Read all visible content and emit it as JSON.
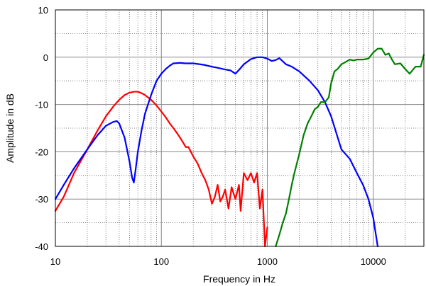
{
  "chart_data": {
    "type": "line",
    "title": "",
    "xlabel": "Frequency in Hz",
    "ylabel": "Amplitude in dB",
    "xscale": "log",
    "xlim": [
      10,
      30000
    ],
    "ylim": [
      -40,
      10
    ],
    "grid": true,
    "legend": "none",
    "x_ticks": [
      10,
      100,
      1000,
      10000
    ],
    "x_tick_labels": [
      "10",
      "100",
      "1000",
      "10000"
    ],
    "y_ticks": [
      10,
      0,
      -10,
      -20,
      -30,
      -40
    ],
    "y_tick_labels": [
      "10",
      "0",
      "-10",
      "-20",
      "-30",
      "-40"
    ],
    "series": [
      {
        "color": "#ff0000",
        "x": [
          10,
          12,
          15,
          20,
          25,
          30,
          35,
          40,
          45,
          50,
          55,
          60,
          65,
          70,
          80,
          90,
          100,
          110,
          120,
          130,
          140,
          150,
          160,
          170,
          180,
          190,
          200,
          220,
          240,
          260,
          280,
          300,
          320,
          340,
          360,
          380,
          400,
          430,
          460,
          500,
          540,
          560,
          600,
          650,
          700,
          750,
          800,
          850,
          900,
          950,
          1000
        ],
        "y": [
          -32.5,
          -29.5,
          -24.5,
          -19.5,
          -15.5,
          -12.5,
          -10.5,
          -9.0,
          -8.0,
          -7.5,
          -7.3,
          -7.3,
          -7.6,
          -8.0,
          -9.0,
          -10.2,
          -11.5,
          -12.7,
          -14.0,
          -15.0,
          -16.0,
          -17.0,
          -18.0,
          -19.0,
          -19.0,
          -20.0,
          -21.0,
          -22.5,
          -24.5,
          -26.0,
          -28.0,
          -31.0,
          -29.5,
          -27.0,
          -30.5,
          -29.5,
          -28.0,
          -32.0,
          -27.5,
          -30.0,
          -27.0,
          -32.5,
          -24.5,
          -26.0,
          -24.5,
          -26.5,
          -24.5,
          -32.0,
          -28.0,
          -40.0,
          -36.0
        ]
      },
      {
        "color": "#0000ff",
        "x": [
          10,
          12,
          15,
          20,
          25,
          30,
          35,
          38,
          40,
          45,
          50,
          53,
          55,
          57,
          60,
          65,
          70,
          80,
          90,
          100,
          110,
          120,
          130,
          150,
          170,
          200,
          250,
          300,
          350,
          400,
          450,
          500,
          550,
          600,
          700,
          800,
          900,
          1000,
          1100,
          1200,
          1300,
          1500,
          1700,
          2000,
          2500,
          3000,
          3500,
          4000,
          5000,
          6000,
          7000,
          8000,
          9000,
          10000,
          11000
        ],
        "y": [
          -30.0,
          -27.0,
          -23.5,
          -19.5,
          -16.5,
          -14.5,
          -13.7,
          -13.5,
          -14.0,
          -17.0,
          -22.0,
          -25.5,
          -26.5,
          -24.0,
          -20.0,
          -15.5,
          -12.0,
          -8.0,
          -5.0,
          -3.5,
          -2.5,
          -1.8,
          -1.3,
          -1.2,
          -1.3,
          -1.3,
          -1.6,
          -2.0,
          -2.3,
          -2.6,
          -2.8,
          -3.5,
          -2.5,
          -1.5,
          -0.4,
          0.0,
          0.0,
          -0.3,
          -0.8,
          -0.6,
          -0.2,
          -1.5,
          -2.0,
          -3.0,
          -5.0,
          -7.0,
          -9.5,
          -12.5,
          -19.5,
          -21.5,
          -24.5,
          -27.0,
          -30.0,
          -34.0,
          -40.0
        ]
      },
      {
        "color": "#008000",
        "x": [
          1200,
          1300,
          1400,
          1500,
          1600,
          1700,
          1800,
          2000,
          2200,
          2400,
          2600,
          2800,
          3000,
          3200,
          3500,
          3800,
          4000,
          4300,
          4600,
          5000,
          5500,
          6000,
          6500,
          7000,
          8000,
          9000,
          10000,
          11000,
          12000,
          13000,
          14000,
          15000,
          16000,
          18000,
          20000,
          22000,
          25000,
          28000,
          30000
        ],
        "y": [
          -40.0,
          -37.5,
          -35.0,
          -33.0,
          -30.0,
          -27.0,
          -24.5,
          -20.5,
          -16.5,
          -14.0,
          -12.5,
          -11.0,
          -10.5,
          -9.5,
          -9.5,
          -8.5,
          -5.5,
          -3.0,
          -2.5,
          -1.5,
          -1.0,
          -0.5,
          -0.7,
          -0.5,
          -0.5,
          -0.3,
          1.0,
          1.8,
          1.8,
          0.5,
          0.8,
          -0.5,
          -1.5,
          -1.3,
          -2.5,
          -3.5,
          -2.0,
          -2.0,
          0.5
        ]
      }
    ]
  }
}
